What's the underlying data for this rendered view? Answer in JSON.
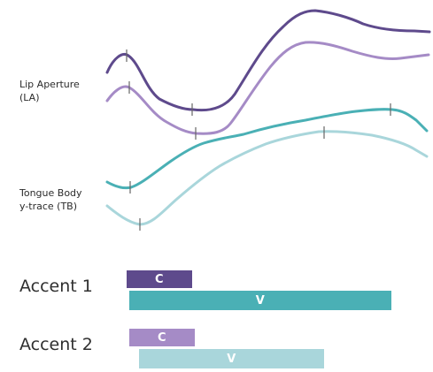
{
  "traces": {
    "lip_aperture": {
      "label_line1": "Lip Aperture",
      "label_line2": "(LA)"
    },
    "tongue_body": {
      "label_line1": "Tongue Body",
      "label_line2": "y-trace (TB)"
    }
  },
  "accents": [
    {
      "label": "Accent 1",
      "consonant_label": "C",
      "vowel_label": "V",
      "consonant_color": "#5e4a8c",
      "vowel_color": "#4ab0b5"
    },
    {
      "label": "Accent 2",
      "consonant_label": "C",
      "vowel_label": "V",
      "consonant_color": "#a58bc6",
      "vowel_color": "#a9d6db"
    }
  ],
  "colors": {
    "accent1_trace": "#5e4a8c",
    "accent2_trace": "#a58bc6",
    "accent1_tongue": "#4ab0b5",
    "accent2_tongue": "#a9d6db",
    "tick": "#666666"
  }
}
